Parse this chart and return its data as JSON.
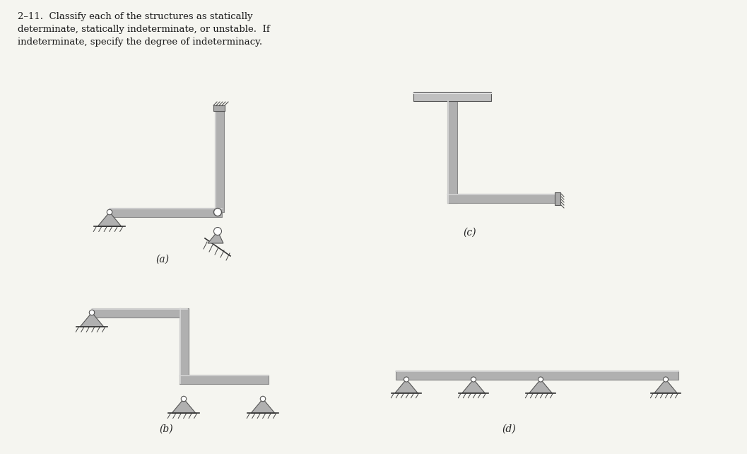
{
  "bg_color": "#f5f5f0",
  "title_text": "2–11.  Classify each of the structures as statically determinate, statically indeterminate, or unstable.  If\nindeterminate, specify the degree of indeterminacy.",
  "label_a": "(a)",
  "label_b": "(b)",
  "label_c": "(c)",
  "label_d": "(d)",
  "beam_color": "#b0b0b0",
  "beam_dark": "#888888",
  "beam_light": "#d8d8d8",
  "wall_color": "#999999",
  "ground_color": "#555555",
  "pin_color": "#c0c0c0",
  "pin_dark": "#888888"
}
